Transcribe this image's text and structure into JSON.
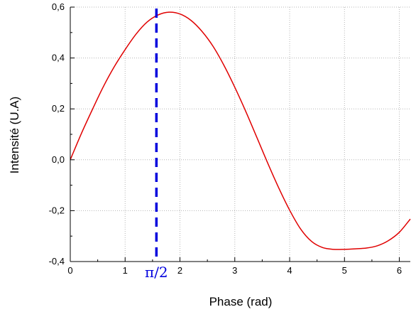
{
  "chart_data": {
    "type": "line",
    "title": "",
    "xlabel": "Phase (rad)",
    "ylabel": "Intensité (U.A)",
    "xlim": [
      0,
      6.2
    ],
    "ylim": [
      -0.4,
      0.6
    ],
    "x_ticks": [
      {
        "value": 0,
        "label": "0"
      },
      {
        "value": 1,
        "label": "1"
      },
      {
        "value": 2,
        "label": "2"
      },
      {
        "value": 3,
        "label": "3"
      },
      {
        "value": 4,
        "label": "4"
      },
      {
        "value": 5,
        "label": "5"
      },
      {
        "value": 6,
        "label": "6"
      }
    ],
    "y_ticks": [
      {
        "value": -0.4,
        "label": "-0,4"
      },
      {
        "value": -0.2,
        "label": "-0,2"
      },
      {
        "value": 0.0,
        "label": "0,0"
      },
      {
        "value": 0.2,
        "label": "0,2"
      },
      {
        "value": 0.4,
        "label": "0,4"
      },
      {
        "value": 0.6,
        "label": "0,6"
      }
    ],
    "grid": true,
    "series": [
      {
        "color": "#e00000",
        "x": [
          0,
          0.2,
          0.4,
          0.6,
          0.8,
          1.0,
          1.2,
          1.4,
          1.6,
          1.8,
          2.0,
          2.2,
          2.4,
          2.6,
          2.8,
          3.0,
          3.2,
          3.4,
          3.6,
          3.8,
          4.0,
          4.2,
          4.4,
          4.6,
          4.8,
          5.0,
          5.2,
          5.4,
          5.6,
          5.8,
          6.0,
          6.2
        ],
        "y": [
          0.0,
          0.102,
          0.196,
          0.286,
          0.365,
          0.433,
          0.494,
          0.541,
          0.569,
          0.58,
          0.573,
          0.548,
          0.505,
          0.447,
          0.372,
          0.285,
          0.19,
          0.089,
          -0.013,
          -0.11,
          -0.198,
          -0.272,
          -0.321,
          -0.345,
          -0.352,
          -0.352,
          -0.35,
          -0.347,
          -0.338,
          -0.318,
          -0.285,
          -0.233
        ]
      }
    ],
    "vertical_marker": {
      "x": 1.5708,
      "label": "π/2",
      "color": "#0000dd"
    }
  }
}
